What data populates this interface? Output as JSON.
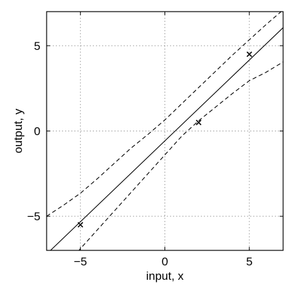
{
  "chart_data": {
    "type": "line",
    "title": "",
    "xlabel": "input, x",
    "ylabel": "output, y",
    "xlim": [
      -7,
      7
    ],
    "ylim": [
      -7,
      7
    ],
    "xticks": [
      -5,
      0,
      5
    ],
    "yticks": [
      -5,
      0,
      5
    ],
    "xtick_labels": [
      "−5",
      "0",
      "5"
    ],
    "ytick_labels": [
      "−5",
      "0",
      "5"
    ],
    "grid": true,
    "grid_style": "dotted",
    "legend": "none",
    "series": [
      {
        "style": "solid",
        "color": "#000000",
        "x": [
          -7,
          7
        ],
        "y": [
          -7.22,
          6.06
        ]
      },
      {
        "style": "dashed",
        "color": "#000000",
        "x": [
          -7,
          -6,
          -5,
          -4,
          -3,
          -2,
          -1,
          0,
          1,
          2,
          3,
          4,
          5,
          6,
          7
        ],
        "y": [
          -5.0,
          -4.35,
          -3.65,
          -2.8,
          -1.9,
          -1.0,
          -0.2,
          0.65,
          1.6,
          2.55,
          3.5,
          4.45,
          5.35,
          6.25,
          7.1
        ]
      },
      {
        "style": "dashed",
        "color": "#000000",
        "x": [
          -7,
          -6,
          -5,
          -4,
          -3,
          -2,
          -1,
          0,
          1,
          2,
          3,
          4,
          5,
          6,
          7
        ],
        "y": [
          -9.2,
          -8.1,
          -6.9,
          -5.8,
          -4.7,
          -3.6,
          -2.5,
          -1.4,
          -0.3,
          0.6,
          1.4,
          2.2,
          2.95,
          3.45,
          4.05
        ]
      },
      {
        "style": "markers",
        "marker": "x",
        "color": "#000000",
        "x": [
          -5,
          2,
          5
        ],
        "y": [
          -5.5,
          0.5,
          4.5
        ]
      }
    ]
  }
}
